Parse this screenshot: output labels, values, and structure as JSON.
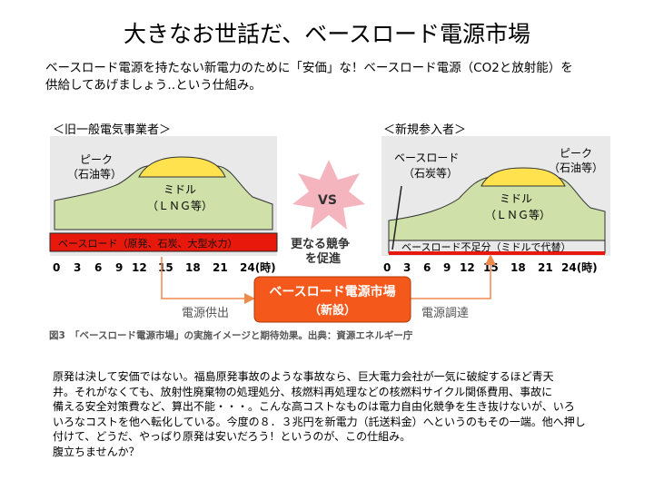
{
  "slide": {
    "title": "大きなお世話だ、ベースロード電源市場",
    "intro_line1": "ベースロード電源を持たない新電力のために「安価」な！ベースロード電源（CO2と放射能）を",
    "intro_line2": "供給してあげましょう‥という仕組み。"
  },
  "figure": {
    "left_panel": {
      "heading": "＜旧一般電気事業者＞",
      "peak_label": "ピーク",
      "peak_sub": "（石油等）",
      "middle_label": "ミドル",
      "middle_sub": "（ＬＮＧ等）",
      "base_label": "ベースロード（原発、石炭、大型水力）"
    },
    "right_panel": {
      "heading": "＜新規参入者＞",
      "base_label": "ベースロード",
      "base_sub": "（石炭等）",
      "peak_label": "ピーク",
      "peak_sub": "（石油等）",
      "middle_label": "ミドル",
      "middle_sub": "（ＬＮＧ等）",
      "shortage_label": "ベースロード不足分（ミドルで代替）"
    },
    "vs_label": "VS",
    "competition_line1": "更なる競争",
    "competition_line2": "を促進",
    "hours_left": [
      "0",
      "3",
      "6",
      "9",
      "12",
      "15",
      "18",
      "21",
      "24(時)"
    ],
    "hours_right": [
      "0",
      "3",
      "6",
      "9",
      "12",
      "15",
      "18",
      "21",
      "24(時)"
    ],
    "market_box_line1": "ベースロード電源市場",
    "market_box_line2": "（新設）",
    "supply_label": "電源供出",
    "procure_label": "電源調達",
    "caption": "図3　「ベースロード電源市場」の実施イメージと期待効果。出典：資源エネルギー庁",
    "colors": {
      "panel_bg": "#e9e9e9",
      "peak": "#ffe24d",
      "middle": "#cfe0a8",
      "base": "#e8190c",
      "market_box": "#f4581a",
      "arrow": "#f08a4b",
      "vs_burst": "#f5b5bf"
    }
  },
  "body": {
    "line1": "原発は決して安価ではない。福島原発事故のような事故なら、巨大電力会社が一気に破綻するほど青天",
    "line2": "井。それがなくても、放射性廃棄物の処理処分、核燃料再処理などの核燃料サイクル関係費用、事故に",
    "line3": "備える安全対策費など、算出不能・・・。こんな高コストなものは電力自由化競争を生き抜けないが、いろ",
    "line4": "いろなコストを他へ転化している。今度の８．３兆円を新電力（託送料金）へというのもその一端。他へ押し",
    "line5": "付けて、どうだ、やっぱり原発は安いだろう！というのが、この仕組み。",
    "line6": "腹立ちませんか？"
  }
}
